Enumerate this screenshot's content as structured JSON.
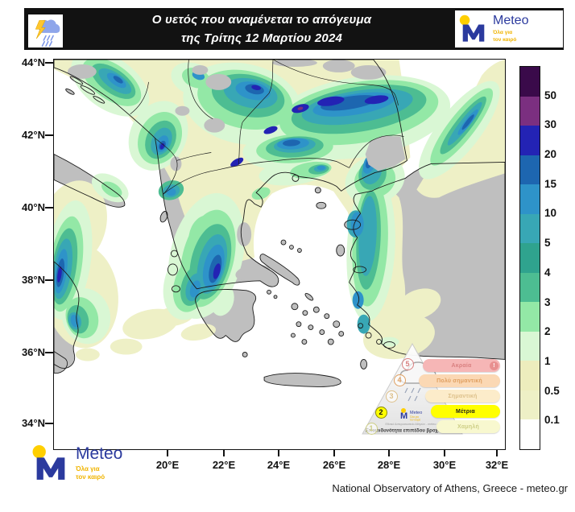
{
  "header": {
    "title_line1": "Ο υετός που αναμένεται το απόγευμα",
    "title_line2": "της Τρίτης 12 Μαρτίου 2024"
  },
  "brand": {
    "name": "Meteo",
    "tagline_line1": "Όλα για",
    "tagline_line2": "τον καιρό",
    "blue": "#2b3a9e",
    "yellow": "#ffc800"
  },
  "map": {
    "lat_ticks": [
      "44°N",
      "42°N",
      "40°N",
      "38°N",
      "36°N",
      "34°N"
    ],
    "lon_ticks": [
      "20°E",
      "22°E",
      "24°E",
      "26°E",
      "28°E",
      "30°E",
      "32°E"
    ],
    "land_color": "#bfbfbf",
    "sea_color": "#ffffff",
    "border_color": "#1a1a1a"
  },
  "colorbar": {
    "levels": [
      {
        "key": "50x",
        "label": "50",
        "color": "#3a0a4a"
      },
      {
        "key": "30",
        "label": "30",
        "color": "#7b2f80"
      },
      {
        "key": "20",
        "label": "20",
        "color": "#2323b4"
      },
      {
        "key": "15",
        "label": "15",
        "color": "#1d66b0"
      },
      {
        "key": "10",
        "label": "10",
        "color": "#2e93c9"
      },
      {
        "key": "5",
        "label": "5",
        "color": "#38a7b5"
      },
      {
        "key": "4",
        "label": "4",
        "color": "#2fa38e"
      },
      {
        "key": "3",
        "label": "3",
        "color": "#4dbd92"
      },
      {
        "key": "2",
        "label": "2",
        "color": "#93e8a6"
      },
      {
        "key": "1",
        "label": "1",
        "color": "#d9f7d4"
      },
      {
        "key": "05",
        "label": "0.5",
        "color": "#ededbd"
      },
      {
        "key": "01",
        "label": "0.1",
        "color": "#eef0c6"
      },
      {
        "key": "0",
        "label": "",
        "color": "#ffffff"
      }
    ]
  },
  "hazard_scale": {
    "caption": "Επικινδυνότητα επιπέδου βροχόπτωσης",
    "active_level": 2,
    "logo_caption": "Εθνικό Αστεροσκοπείο Αθηνών - meteo.gr",
    "levels": [
      {
        "level": 5,
        "label": "Ακραία",
        "pill_color": "#f6b6b6",
        "text_color": "#d98080",
        "badge": "!",
        "badge_color": "#e89090"
      },
      {
        "level": 4,
        "label": "Πολύ σημαντική",
        "pill_color": "#fbd8b4",
        "text_color": "#df9f60"
      },
      {
        "level": 3,
        "label": "Σημαντική",
        "pill_color": "#fcecca",
        "text_color": "#ddc08a"
      },
      {
        "level": 2,
        "label": "Μέτρια",
        "pill_color": "#ffff00",
        "text_color": "#1a1a1a"
      },
      {
        "level": 1,
        "label": "Χαμηλή",
        "pill_color": "#f8f8cf",
        "text_color": "#cdce85"
      }
    ]
  },
  "footer": {
    "attribution": "National Observatory of Athens, Greece - meteo.gr"
  }
}
